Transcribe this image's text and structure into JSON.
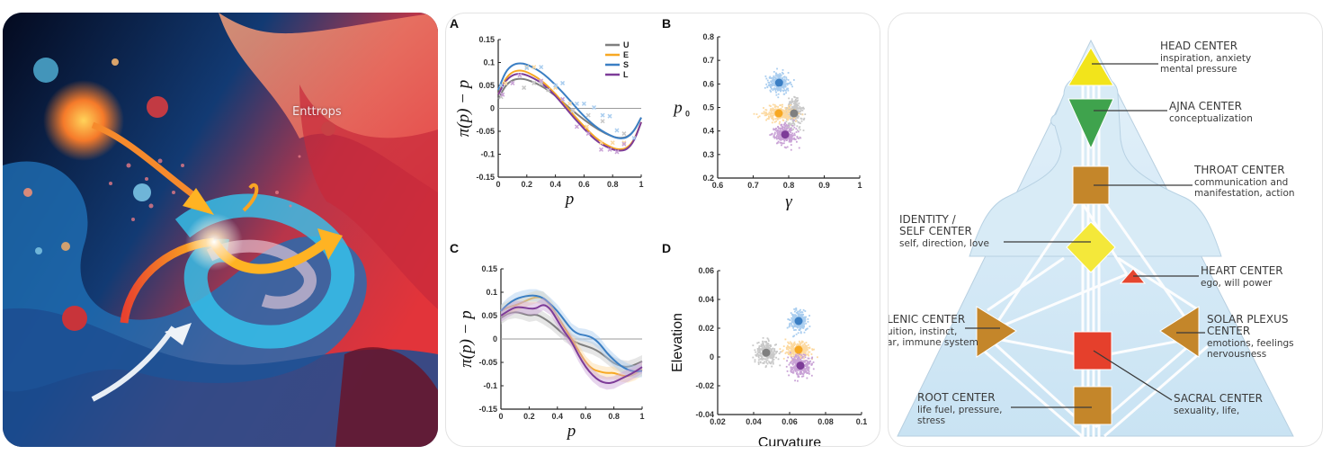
{
  "art": {
    "label": "Enttrops",
    "description": "Abstract swirling fluid illustration with arrows and particles"
  },
  "colors": {
    "U": "#7f7f7f",
    "E": "#f7a823",
    "S": "#3b7fc4",
    "L": "#7d3c98",
    "U_light": "#c8c8c8",
    "E_light": "#fcd9a0",
    "S_light": "#a9cdef",
    "L_light": "#c9a2d6"
  },
  "chart_data": [
    {
      "panel": "A",
      "type": "line",
      "title": "",
      "xlabel": "p",
      "ylabel": "π(p) − p",
      "xlim": [
        0,
        1
      ],
      "ylim": [
        -0.15,
        0.15
      ],
      "xticks": [
        "0",
        "0.2",
        "0.4",
        "0.6",
        "0.8",
        "1"
      ],
      "yticks": [
        "0.15",
        "0.1",
        "0.05",
        "0",
        "-0.05",
        "-0.1",
        "-0.15"
      ],
      "legend": [
        "U",
        "E",
        "S",
        "L"
      ],
      "legend_position": "top-right",
      "x": [
        0,
        0.05,
        0.1,
        0.15,
        0.2,
        0.3,
        0.4,
        0.5,
        0.6,
        0.7,
        0.8,
        0.85,
        0.9,
        0.95,
        1.0
      ],
      "series": [
        {
          "name": "U",
          "values": [
            0.02,
            0.05,
            0.062,
            0.065,
            0.063,
            0.05,
            0.028,
            0.0,
            -0.025,
            -0.047,
            -0.062,
            -0.065,
            -0.063,
            -0.05,
            -0.02
          ]
        },
        {
          "name": "E",
          "values": [
            0.03,
            0.065,
            0.08,
            0.083,
            0.08,
            0.062,
            0.032,
            -0.005,
            -0.04,
            -0.07,
            -0.087,
            -0.09,
            -0.087,
            -0.07,
            -0.03
          ]
        },
        {
          "name": "S",
          "values": [
            0.04,
            0.08,
            0.095,
            0.099,
            0.096,
            0.08,
            0.052,
            0.018,
            -0.018,
            -0.045,
            -0.062,
            -0.066,
            -0.064,
            -0.05,
            -0.02
          ]
        },
        {
          "name": "L",
          "values": [
            0.03,
            0.06,
            0.073,
            0.076,
            0.073,
            0.057,
            0.028,
            -0.01,
            -0.045,
            -0.075,
            -0.09,
            -0.093,
            -0.09,
            -0.072,
            -0.03
          ]
        }
      ],
      "scatter": [
        {
          "name": "U",
          "x": [
            0.02,
            0.18,
            0.25,
            0.3,
            0.35,
            0.52,
            0.63,
            0.73,
            0.88
          ],
          "y": [
            0.025,
            0.045,
            0.055,
            0.055,
            0.04,
            -0.005,
            -0.015,
            -0.028,
            -0.055
          ]
        },
        {
          "name": "E",
          "x": [
            0.05,
            0.2,
            0.25,
            0.4,
            0.5,
            0.62,
            0.72,
            0.8,
            0.88
          ],
          "y": [
            0.055,
            0.09,
            0.09,
            0.045,
            0.01,
            -0.04,
            -0.075,
            -0.075,
            -0.075
          ]
        },
        {
          "name": "S",
          "x": [
            0.02,
            0.2,
            0.3,
            0.4,
            0.45,
            0.55,
            0.6,
            0.67,
            0.73,
            0.78,
            0.83,
            0.95
          ],
          "y": [
            0.05,
            0.088,
            0.09,
            0.05,
            0.055,
            0.01,
            0.01,
            0.002,
            -0.015,
            -0.017,
            -0.048,
            -0.065
          ]
        },
        {
          "name": "L",
          "x": [
            0.03,
            0.1,
            0.15,
            0.3,
            0.45,
            0.55,
            0.63,
            0.72,
            0.78,
            0.83,
            0.88
          ],
          "y": [
            0.03,
            0.055,
            0.072,
            0.06,
            0.02,
            -0.04,
            -0.055,
            -0.09,
            -0.09,
            -0.095,
            -0.078
          ]
        }
      ]
    },
    {
      "panel": "B",
      "type": "scatter",
      "xlabel": "γ",
      "ylabel": "p0",
      "xlim": [
        0.6,
        1.0
      ],
      "ylim": [
        0.2,
        0.8
      ],
      "xticks": [
        "0.6",
        "0.7",
        "0.8",
        "0.9",
        "1"
      ],
      "yticks": [
        "0.8",
        "0.7",
        "0.6",
        "0.5",
        "0.4",
        "0.3",
        "0.2"
      ],
      "series": [
        {
          "name": "U",
          "center": [
            0.815,
            0.475
          ],
          "spread": [
            0.025,
            0.06
          ]
        },
        {
          "name": "E",
          "center": [
            0.772,
            0.475
          ],
          "spread": [
            0.05,
            0.035
          ]
        },
        {
          "name": "S",
          "center": [
            0.773,
            0.605
          ],
          "spread": [
            0.03,
            0.045
          ]
        },
        {
          "name": "L",
          "center": [
            0.79,
            0.385
          ],
          "spread": [
            0.035,
            0.045
          ]
        }
      ]
    },
    {
      "panel": "C",
      "type": "line",
      "xlabel": "p",
      "ylabel": "π(p) − p",
      "xlim": [
        0,
        1
      ],
      "ylim": [
        -0.15,
        0.15
      ],
      "xticks": [
        "0",
        "0.2",
        "0.4",
        "0.6",
        "0.8",
        "1"
      ],
      "yticks": [
        "0.15",
        "0.1",
        "0.05",
        "0",
        "-0.05",
        "-0.1",
        "-0.15"
      ],
      "x": [
        0,
        0.05,
        0.1,
        0.15,
        0.2,
        0.25,
        0.3,
        0.35,
        0.4,
        0.45,
        0.5,
        0.55,
        0.6,
        0.65,
        0.7,
        0.75,
        0.8,
        0.85,
        0.9,
        0.95,
        1.0
      ],
      "series": [
        {
          "name": "U",
          "values": [
            0.045,
            0.055,
            0.058,
            0.055,
            0.05,
            0.053,
            0.045,
            0.035,
            0.022,
            0.008,
            -0.002,
            -0.01,
            -0.015,
            -0.02,
            -0.028,
            -0.04,
            -0.052,
            -0.058,
            -0.06,
            -0.055,
            -0.048
          ]
        },
        {
          "name": "E",
          "values": [
            0.06,
            0.068,
            0.072,
            0.078,
            0.085,
            0.09,
            0.088,
            0.072,
            0.05,
            0.025,
            0.0,
            -0.025,
            -0.05,
            -0.065,
            -0.07,
            -0.073,
            -0.072,
            -0.078,
            -0.08,
            -0.075,
            -0.065
          ]
        },
        {
          "name": "S",
          "values": [
            0.06,
            0.075,
            0.085,
            0.09,
            0.093,
            0.093,
            0.088,
            0.075,
            0.06,
            0.04,
            0.02,
            0.01,
            0.008,
            0.003,
            -0.01,
            -0.03,
            -0.045,
            -0.058,
            -0.066,
            -0.07,
            -0.068
          ]
        },
        {
          "name": "L",
          "values": [
            0.05,
            0.06,
            0.068,
            0.068,
            0.065,
            0.065,
            0.075,
            0.065,
            0.04,
            0.015,
            -0.005,
            -0.035,
            -0.06,
            -0.078,
            -0.09,
            -0.095,
            -0.093,
            -0.085,
            -0.078,
            -0.07,
            -0.06
          ]
        }
      ]
    },
    {
      "panel": "D",
      "type": "scatter",
      "xlabel": "Curvature",
      "ylabel": "Elevation",
      "xlim": [
        0.02,
        0.1
      ],
      "ylim": [
        -0.04,
        0.06
      ],
      "xticks": [
        "0.02",
        "0.04",
        "0.06",
        "0.08",
        "0.1"
      ],
      "yticks": [
        "0.06",
        "0.04",
        "0.02",
        "0",
        "-0.02",
        "-0.04"
      ],
      "series": [
        {
          "name": "U",
          "center": [
            0.047,
            0.003
          ],
          "spread": [
            0.006,
            0.008
          ]
        },
        {
          "name": "E",
          "center": [
            0.065,
            0.005
          ],
          "spread": [
            0.008,
            0.006
          ]
        },
        {
          "name": "S",
          "center": [
            0.065,
            0.025
          ],
          "spread": [
            0.005,
            0.008
          ]
        },
        {
          "name": "L",
          "center": [
            0.066,
            -0.006
          ],
          "spread": [
            0.007,
            0.008
          ]
        }
      ]
    }
  ],
  "diagram": {
    "centers": [
      {
        "key": "head",
        "title": [
          "HEAD CENTER"
        ],
        "desc": [
          "inspiration, anxiety",
          "mental pressure"
        ],
        "color": "#f2e41b"
      },
      {
        "key": "ajna",
        "title": [
          "AJNA CENTER"
        ],
        "desc": [
          "conceptualization"
        ],
        "color": "#3fa34d"
      },
      {
        "key": "throat",
        "title": [
          "THROAT CENTER"
        ],
        "desc": [
          "communication and",
          "manifestation, action"
        ],
        "color": "#c4862a"
      },
      {
        "key": "identity",
        "title": [
          "IDENTITY /",
          "SELF CENTER"
        ],
        "desc": [
          "self, direction, love"
        ],
        "color": "#f4e83a"
      },
      {
        "key": "heart",
        "title": [
          "HEART CENTER"
        ],
        "desc": [
          "ego, will power"
        ],
        "color": "#e5462f"
      },
      {
        "key": "splenic",
        "title": [
          "LENIC CENTER"
        ],
        "desc": [
          "uition, instinct,",
          "ar, immune system"
        ],
        "color": "#c4862a"
      },
      {
        "key": "solar",
        "title": [
          "SOLAR PLEXUS",
          "CENTER"
        ],
        "desc": [
          "emotions, feelings",
          "nervousness"
        ],
        "color": "#c4862a"
      },
      {
        "key": "sacral",
        "title": [
          "SACRAL CENTER"
        ],
        "desc": [
          "sexuality, life,"
        ],
        "color": "#e5402c"
      },
      {
        "key": "root",
        "title": [
          "ROOT CENTER"
        ],
        "desc": [
          "life fuel, pressure,",
          "stress"
        ],
        "color": "#c4862a"
      }
    ]
  }
}
